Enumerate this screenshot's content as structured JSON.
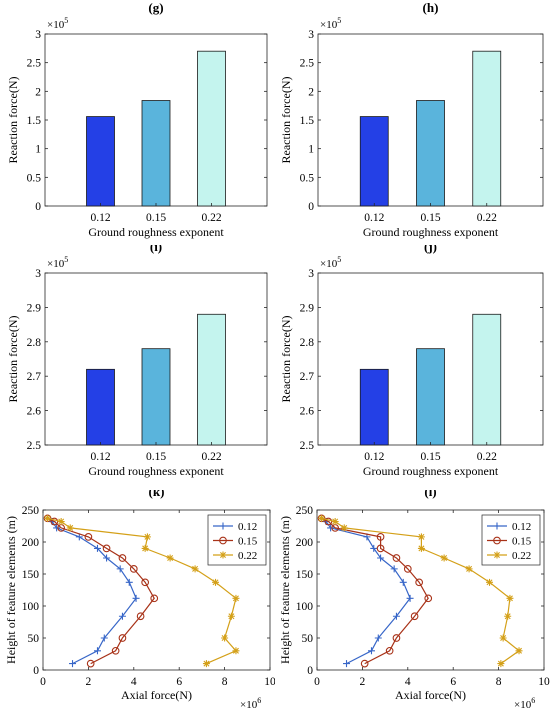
{
  "colors": {
    "bar_012": "#2440E6",
    "bar_015": "#5AB4DC",
    "bar_022": "#C4F4EE",
    "line_012": "#3766C8",
    "line_015": "#A83218",
    "line_022": "#D4A018"
  },
  "chart_data": [
    {
      "type": "bar",
      "panel_label": "(g)",
      "categories": [
        "0.12",
        "0.15",
        "0.22"
      ],
      "values": [
        156000,
        184000,
        270000
      ],
      "xlabel": "Ground roughness exponent",
      "ylabel": "Reaction force(N)",
      "ylim": [
        0,
        300000
      ],
      "yticks": [
        0,
        50000,
        100000,
        150000,
        200000,
        250000,
        300000
      ],
      "ytick_labels": [
        "0",
        "0.5",
        "1",
        "1.5",
        "2",
        "2.5",
        "3"
      ],
      "exponent_label": "×10",
      "exponent_power": "5",
      "grid": false
    },
    {
      "type": "bar",
      "panel_label": "(h)",
      "categories": [
        "0.12",
        "0.15",
        "0.22"
      ],
      "values": [
        156000,
        184000,
        270000
      ],
      "xlabel": "Ground roughness exponent",
      "ylabel": "Reaction force(N)",
      "ylim": [
        0,
        300000
      ],
      "yticks": [
        0,
        50000,
        100000,
        150000,
        200000,
        250000,
        300000
      ],
      "ytick_labels": [
        "0",
        "0.5",
        "1",
        "1.5",
        "2",
        "2.5",
        "3"
      ],
      "exponent_label": "×10",
      "exponent_power": "5",
      "grid": false
    },
    {
      "type": "bar",
      "panel_label": "(i)",
      "categories": [
        "0.12",
        "0.15",
        "0.22"
      ],
      "values": [
        272000,
        278000,
        288000
      ],
      "xlabel": "Ground roughness exponent",
      "ylabel": "Reaction force(N)",
      "ylim": [
        250000,
        300000
      ],
      "yticks": [
        250000,
        260000,
        270000,
        280000,
        290000,
        300000
      ],
      "ytick_labels": [
        "2.5",
        "2.6",
        "2.7",
        "2.8",
        "2.9",
        "3"
      ],
      "exponent_label": "×10",
      "exponent_power": "5",
      "grid": false
    },
    {
      "type": "bar",
      "panel_label": "(j)",
      "categories": [
        "0.12",
        "0.15",
        "0.22"
      ],
      "values": [
        272000,
        278000,
        288000
      ],
      "xlabel": "Ground roughness exponent",
      "ylabel": "Reaction force(N)",
      "ylim": [
        250000,
        300000
      ],
      "yticks": [
        250000,
        260000,
        270000,
        280000,
        290000,
        300000
      ],
      "ytick_labels": [
        "2.5",
        "2.6",
        "2.7",
        "2.8",
        "2.9",
        "3"
      ],
      "exponent_label": "×10",
      "exponent_power": "5",
      "grid": false
    },
    {
      "type": "line",
      "panel_label": "(k)",
      "xlabel": "Axial force(N)",
      "ylabel": "Height of feature elements (m)",
      "xlim": [
        0,
        10000000
      ],
      "ylim": [
        0,
        250
      ],
      "xticks": [
        0,
        2000000,
        4000000,
        6000000,
        8000000,
        10000000
      ],
      "xtick_labels": [
        "0",
        "2",
        "4",
        "6",
        "8",
        "10"
      ],
      "yticks": [
        0,
        50,
        100,
        150,
        200,
        250
      ],
      "ytick_labels": [
        "0",
        "50",
        "100",
        "150",
        "200",
        "250"
      ],
      "exponent_label": "×10",
      "exponent_power": "6",
      "legend_position": "top-right",
      "grid": false,
      "y": [
        237,
        232,
        222,
        208,
        190,
        175,
        158,
        137,
        112,
        84,
        50,
        30,
        10
      ],
      "series": [
        {
          "name": "0.12",
          "marker": "plus",
          "x": [
            200000,
            400000,
            600000,
            1600000,
            2400000,
            2800000,
            3400000,
            3800000,
            4100000,
            3500000,
            2700000,
            2400000,
            1300000
          ]
        },
        {
          "name": "0.15",
          "marker": "circle",
          "x": [
            200000,
            500000,
            800000,
            2000000,
            2800000,
            3500000,
            4000000,
            4500000,
            4900000,
            4300000,
            3500000,
            3200000,
            2100000
          ]
        },
        {
          "name": "0.22",
          "marker": "star",
          "x": [
            200000,
            800000,
            1200000,
            4600000,
            4500000,
            5600000,
            6700000,
            7600000,
            8500000,
            8300000,
            8000000,
            8500000,
            7200000
          ]
        }
      ]
    },
    {
      "type": "line",
      "panel_label": "(l)",
      "xlabel": "Axial force(N)",
      "ylabel": "Height of feature elements (m)",
      "xlim": [
        0,
        10000000
      ],
      "ylim": [
        0,
        250
      ],
      "xticks": [
        0,
        2000000,
        4000000,
        6000000,
        8000000,
        10000000
      ],
      "xtick_labels": [
        "0",
        "2",
        "4",
        "6",
        "8",
        "10"
      ],
      "yticks": [
        0,
        50,
        100,
        150,
        200,
        250
      ],
      "ytick_labels": [
        "0",
        "50",
        "100",
        "150",
        "200",
        "250"
      ],
      "exponent_label": "×10",
      "exponent_power": "6",
      "legend_position": "top-right",
      "grid": false,
      "y": [
        237,
        232,
        222,
        208,
        190,
        175,
        158,
        137,
        112,
        84,
        50,
        30,
        10
      ],
      "series": [
        {
          "name": "0.12",
          "marker": "plus",
          "x": [
            200000,
            400000,
            600000,
            2200000,
            2500000,
            2800000,
            3400000,
            3800000,
            4100000,
            3500000,
            2700000,
            2400000,
            1300000
          ]
        },
        {
          "name": "0.15",
          "marker": "circle",
          "x": [
            200000,
            500000,
            800000,
            2800000,
            2800000,
            3500000,
            4000000,
            4500000,
            4900000,
            4300000,
            3500000,
            3200000,
            2100000
          ]
        },
        {
          "name": "0.22",
          "marker": "star",
          "x": [
            200000,
            800000,
            1200000,
            4600000,
            4600000,
            5600000,
            6700000,
            7600000,
            8500000,
            8400000,
            8200000,
            8900000,
            8100000
          ]
        }
      ]
    }
  ]
}
